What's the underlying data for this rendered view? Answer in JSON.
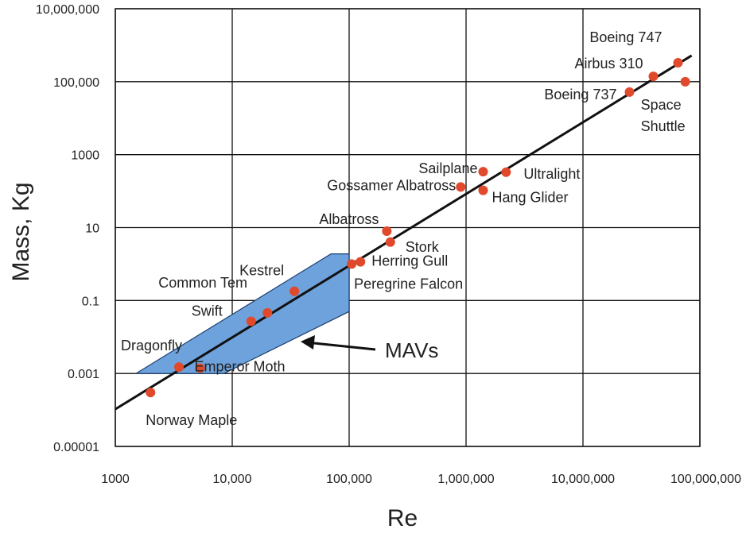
{
  "chart_data": {
    "type": "scatter",
    "xlabel": "Re",
    "ylabel": "Mass, Kg",
    "x_scale": "log",
    "y_scale": "log",
    "xlim": [
      1000,
      100000000
    ],
    "ylim": [
      1e-05,
      10000000
    ],
    "x_ticks": [
      {
        "value": 1000,
        "label": "1000"
      },
      {
        "value": 10000,
        "label": "10,000"
      },
      {
        "value": 100000,
        "label": "100,000"
      },
      {
        "value": 1000000,
        "label": "1,000,000"
      },
      {
        "value": 10000000,
        "label": "10,000,000"
      },
      {
        "value": 100000000,
        "label": "100,000,000"
      }
    ],
    "y_ticks": [
      {
        "value": 1e-05,
        "label": "0.00001"
      },
      {
        "value": 0.001,
        "label": "0.001"
      },
      {
        "value": 0.1,
        "label": "0.1"
      },
      {
        "value": 10,
        "label": "10"
      },
      {
        "value": 1000,
        "label": "1000"
      },
      {
        "value": 100000,
        "label": "100,000"
      },
      {
        "value": 10000000,
        "label": "10,000,000"
      }
    ],
    "grid": true,
    "point_color": "#e0492b",
    "points": [
      {
        "label": "Norway Maple",
        "x": 2000,
        "y": 0.0003
      },
      {
        "label": "Dragonfly",
        "x": 3500,
        "y": 0.0015
      },
      {
        "label": "Emperor Moth",
        "x": 5300,
        "y": 0.0014
      },
      {
        "label": "Swift",
        "x": 14500,
        "y": 0.027
      },
      {
        "label": "Common Tem",
        "x": 20000,
        "y": 0.046
      },
      {
        "label": "Kestrel",
        "x": 34000,
        "y": 0.18
      },
      {
        "label": "Peregrine Falcon",
        "x": 105000,
        "y": 1.0
      },
      {
        "label": "Herring Gull",
        "x": 125000,
        "y": 1.15
      },
      {
        "label": "Albatross",
        "x": 210000,
        "y": 8.0
      },
      {
        "label": "Stork",
        "x": 225000,
        "y": 4.0
      },
      {
        "label": "Gossamer Albatross",
        "x": 900000,
        "y": 130
      },
      {
        "label": "Sailplane",
        "x": 1400000,
        "y": 340
      },
      {
        "label": "Hang Glider",
        "x": 1400000,
        "y": 105
      },
      {
        "label": "Ultralight",
        "x": 2200000,
        "y": 330
      },
      {
        "label": "Boeing 737",
        "x": 25000000,
        "y": 52000
      },
      {
        "label": "Airbus 310",
        "x": 40000000,
        "y": 140000
      },
      {
        "label": "Boeing 747",
        "x": 65000000,
        "y": 330000
      },
      {
        "label": "Space Shuttle",
        "x": 75000000,
        "y": 100000
      }
    ],
    "trend_line": {
      "x": [
        1000,
        85000000
      ],
      "y": [
        0.000105,
        520000
      ]
    },
    "mav_region": {
      "label": "MAVs",
      "color": "#6ea2dc",
      "vertices": [
        {
          "x": 1500,
          "y": 0.001
        },
        {
          "x": 70000,
          "y": 1.9
        },
        {
          "x": 100000,
          "y": 1.9
        },
        {
          "x": 100000,
          "y": 0.05
        },
        {
          "x": 8500,
          "y": 0.001
        }
      ]
    }
  }
}
